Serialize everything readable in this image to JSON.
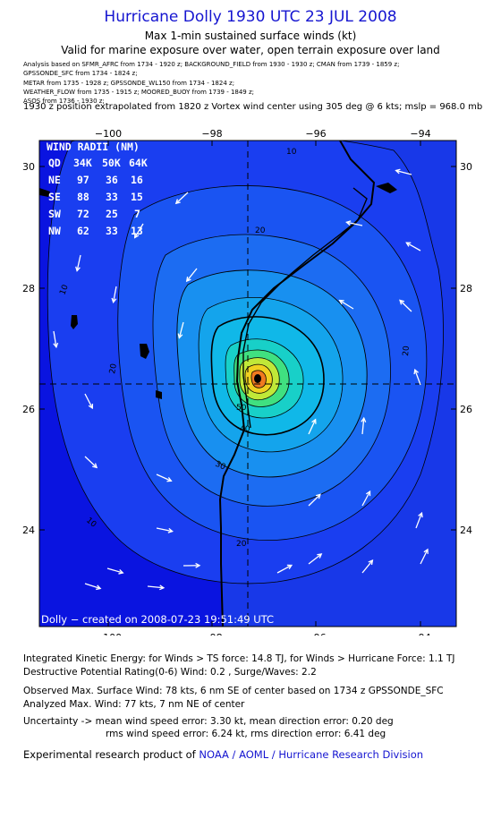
{
  "header": {
    "title": "Hurricane Dolly 1930 UTC 23 JUL 2008",
    "subtitle": "Max 1-min sustained surface winds (kt)",
    "validity": "Valid for marine exposure over water, open terrain exposure over land",
    "sources": [
      "Analysis based on  SFMR_AFRC from 1734 - 1920 z;  BACKGROUND_FIELD from 1930 - 1930 z;  CMAN from 1739 - 1859 z;",
      "GPSSONDE_SFC from 1734 - 1824 z;",
      "METAR from 1735 - 1928 z;  GPSSONDE_WL150 from 1734 - 1824 z;",
      "WEATHER_FLOW from 1735 - 1915 z;  MOORED_BUOY from 1739 - 1849 z;",
      "ASOS from 1736 - 1930 z;"
    ],
    "position_note": "1930 z position extrapolated from 1820 z Vortex wind center using 305 deg @ 6 kts; mslp = 968.0 mb"
  },
  "map": {
    "lon_ticks": [
      "−100",
      "−98",
      "−96",
      "−94"
    ],
    "lat_ticks": [
      "30",
      "28",
      "26",
      "24"
    ],
    "contour_labels": [
      "10",
      "10",
      "10",
      "20",
      "20",
      "20",
      "20",
      "30",
      "40",
      "50"
    ],
    "center": {
      "lon": -97.3,
      "lat": 26.45
    },
    "credit": "Dolly − created on 2008-07-23 19:51:49 UTC",
    "colors": {
      "ocean": "#1838e8",
      "land": "#0a14e0",
      "ring30": "#1890f0",
      "ring40": "#10b8e8",
      "ring50": "#18d8b8",
      "ring60": "#40e080",
      "ring70": "#c0e838",
      "ring75": "#f0d020"
    },
    "wind_radii": {
      "title": "WIND RADII (NM)",
      "header": [
        "QD",
        "34K",
        "50K",
        "64K"
      ],
      "rows": [
        [
          "NE",
          "97",
          "36",
          "16"
        ],
        [
          "SE",
          "88",
          "33",
          "15"
        ],
        [
          "SW",
          "72",
          "25",
          "7"
        ],
        [
          "NW",
          "62",
          "33",
          "13"
        ]
      ]
    }
  },
  "footer": {
    "ike": "Integrated Kinetic Energy:  for Winds > TS force: 14.8 TJ,  for Winds > Hurricane Force: 1.1 TJ",
    "dpr": "Destructive Potential Rating(0-6)   Wind: 0.2 , Surge/Waves: 2.2",
    "obs_max": "Observed Max. Surface Wind: 78 kts, 6 nm SE of center based on 1734 z GPSSONDE_SFC",
    "an_max": "Analyzed Max. Wind: 77 kts, 7 nm NE of center",
    "unc1": "Uncertainty -> mean wind speed error: 3.30 kt,   mean direction error: 0.20 deg",
    "unc2": "rms wind speed error: 6.24 kt,   rms direction error: 6.41 deg",
    "credit_prefix": "Experimental research product of ",
    "credit_org": "NOAA / AOML / Hurricane Research Division"
  }
}
